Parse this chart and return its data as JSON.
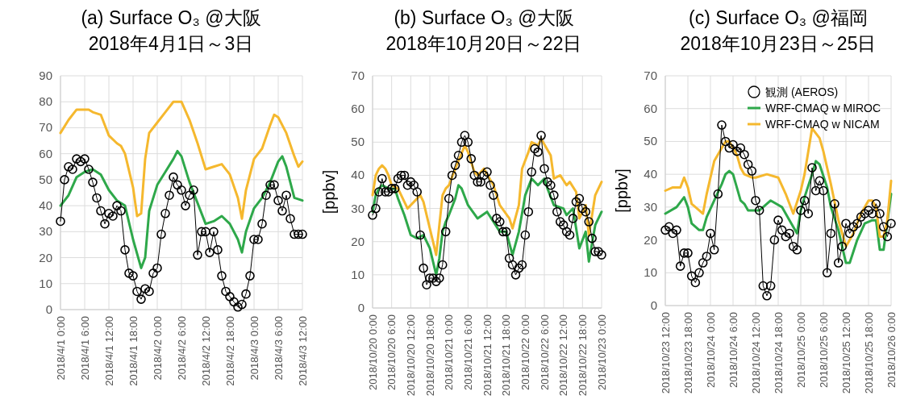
{
  "chart_data": [
    {
      "type": "line",
      "title": "(a) Surface O₃ @大阪",
      "subtitle": "2018年4月1日～3日",
      "grid": true,
      "xlim": [
        "2018-04-01T00:00",
        "2018-04-03T12:00"
      ],
      "ylim": [
        0,
        90
      ],
      "yticks": [
        0,
        10,
        20,
        30,
        40,
        50,
        60,
        70,
        80,
        90
      ],
      "xticks": [
        {
          "value": "2018-04-01T00:00",
          "label": "2018/4/1 0:00"
        },
        {
          "value": "2018-04-01T06:00",
          "label": "2018/4/1 6:00"
        },
        {
          "value": "2018-04-01T12:00",
          "label": "2018/4/1 12:00"
        },
        {
          "value": "2018-04-01T18:00",
          "label": "2018/4/1 18:00"
        },
        {
          "value": "2018-04-02T00:00",
          "label": "2018/4/2 0:00"
        },
        {
          "value": "2018-04-02T06:00",
          "label": "2018/4/2 6:00"
        },
        {
          "value": "2018-04-02T12:00",
          "label": "2018/4/2 12:00"
        },
        {
          "value": "2018-04-02T18:00",
          "label": "2018/4/2 18:00"
        },
        {
          "value": "2018-04-03T00:00",
          "label": "2018/4/3 0:00"
        },
        {
          "value": "2018-04-03T06:00",
          "label": "2018/4/3 6:00"
        },
        {
          "value": "2018-04-03T12:00",
          "label": "2018/4/3 12:00"
        }
      ],
      "x": [
        "2018-04-01T00:00",
        "2018-04-01T01:00",
        "2018-04-01T02:00",
        "2018-04-01T03:00",
        "2018-04-01T04:00",
        "2018-04-01T05:00",
        "2018-04-01T06:00",
        "2018-04-01T07:00",
        "2018-04-01T08:00",
        "2018-04-01T09:00",
        "2018-04-01T10:00",
        "2018-04-01T11:00",
        "2018-04-01T12:00",
        "2018-04-01T13:00",
        "2018-04-01T14:00",
        "2018-04-01T15:00",
        "2018-04-01T16:00",
        "2018-04-01T17:00",
        "2018-04-01T18:00",
        "2018-04-01T19:00",
        "2018-04-01T20:00",
        "2018-04-01T21:00",
        "2018-04-01T22:00",
        "2018-04-01T23:00",
        "2018-04-02T00:00",
        "2018-04-02T01:00",
        "2018-04-02T02:00",
        "2018-04-02T03:00",
        "2018-04-02T04:00",
        "2018-04-02T05:00",
        "2018-04-02T06:00",
        "2018-04-02T07:00",
        "2018-04-02T08:00",
        "2018-04-02T09:00",
        "2018-04-02T10:00",
        "2018-04-02T11:00",
        "2018-04-02T12:00",
        "2018-04-02T13:00",
        "2018-04-02T14:00",
        "2018-04-02T15:00",
        "2018-04-02T16:00",
        "2018-04-02T17:00",
        "2018-04-02T18:00",
        "2018-04-02T19:00",
        "2018-04-02T20:00",
        "2018-04-02T21:00",
        "2018-04-02T22:00",
        "2018-04-02T23:00",
        "2018-04-03T00:00",
        "2018-04-03T01:00",
        "2018-04-03T02:00",
        "2018-04-03T03:00",
        "2018-04-03T04:00",
        "2018-04-03T05:00",
        "2018-04-03T06:00",
        "2018-04-03T07:00",
        "2018-04-03T08:00",
        "2018-04-03T09:00",
        "2018-04-03T10:00",
        "2018-04-03T11:00",
        "2018-04-03T12:00"
      ],
      "series": [
        {
          "color": "#000000",
          "marker": "circle",
          "values": [
            34,
            50,
            55,
            54,
            58,
            57,
            58,
            54,
            49,
            43,
            38,
            33,
            37,
            36,
            40,
            38,
            23,
            14,
            13,
            7,
            4,
            8,
            7,
            14,
            16,
            29,
            37,
            44,
            51,
            48,
            46,
            40,
            44,
            46,
            21,
            30,
            30,
            22,
            30,
            23,
            13,
            7,
            5,
            3,
            1,
            2,
            6,
            13,
            27,
            27,
            33,
            44,
            48,
            48,
            42,
            38,
            44,
            35,
            29,
            29,
            29
          ]
        },
        {
          "color": "#2ea84a",
          "marker": "none",
          "x": [
            "2018-04-01T00:00",
            "2018-04-01T02:00",
            "2018-04-01T04:00",
            "2018-04-01T06:00",
            "2018-04-01T08:00",
            "2018-04-01T10:00",
            "2018-04-01T12:00",
            "2018-04-01T14:00",
            "2018-04-01T16:00",
            "2018-04-01T18:00",
            "2018-04-01T20:00",
            "2018-04-01T21:00",
            "2018-04-01T22:00",
            "2018-04-02T00:00",
            "2018-04-02T02:00",
            "2018-04-02T04:00",
            "2018-04-02T05:00",
            "2018-04-02T06:00",
            "2018-04-02T08:00",
            "2018-04-02T10:00",
            "2018-04-02T12:00",
            "2018-04-02T14:00",
            "2018-04-02T16:00",
            "2018-04-02T18:00",
            "2018-04-02T20:00",
            "2018-04-02T21:00",
            "2018-04-02T22:00",
            "2018-04-03T00:00",
            "2018-04-03T02:00",
            "2018-04-03T04:00",
            "2018-04-03T06:00",
            "2018-04-03T07:00",
            "2018-04-03T08:00",
            "2018-04-03T10:00",
            "2018-04-03T12:00"
          ],
          "values": [
            40,
            44,
            51,
            53,
            54,
            52,
            46,
            42,
            40,
            27,
            16,
            20,
            38,
            48,
            53,
            58,
            61,
            59,
            49,
            41,
            33,
            34,
            36,
            33,
            27,
            22,
            30,
            39,
            43,
            49,
            57,
            59,
            55,
            43,
            42
          ]
        },
        {
          "color": "#f5b82e",
          "marker": "none",
          "x": [
            "2018-04-01T00:00",
            "2018-04-01T02:00",
            "2018-04-01T04:00",
            "2018-04-01T05:00",
            "2018-04-01T07:00",
            "2018-04-01T08:00",
            "2018-04-01T10:00",
            "2018-04-01T11:00",
            "2018-04-01T12:00",
            "2018-04-01T14:00",
            "2018-04-01T15:00",
            "2018-04-01T16:00",
            "2018-04-01T18:00",
            "2018-04-01T19:00",
            "2018-04-01T20:00",
            "2018-04-01T21:00",
            "2018-04-01T22:00",
            "2018-04-02T00:00",
            "2018-04-02T02:00",
            "2018-04-02T04:00",
            "2018-04-02T05:00",
            "2018-04-02T06:00",
            "2018-04-02T08:00",
            "2018-04-02T10:00",
            "2018-04-02T12:00",
            "2018-04-02T14:00",
            "2018-04-02T16:00",
            "2018-04-02T18:00",
            "2018-04-02T20:00",
            "2018-04-02T21:00",
            "2018-04-02T22:00",
            "2018-04-03T00:00",
            "2018-04-03T02:00",
            "2018-04-03T04:00",
            "2018-04-03T05:00",
            "2018-04-03T06:00",
            "2018-04-03T08:00",
            "2018-04-03T10:00",
            "2018-04-03T11:00",
            "2018-04-03T12:00"
          ],
          "values": [
            68,
            73,
            77,
            77,
            77,
            76,
            75,
            71,
            67,
            64,
            63,
            60,
            47,
            36,
            37,
            58,
            68,
            72,
            76,
            80,
            80,
            80,
            73,
            64,
            54,
            55,
            56,
            52,
            43,
            35,
            46,
            58,
            62,
            71,
            75,
            74,
            68,
            59,
            55,
            57
          ]
        }
      ]
    },
    {
      "type": "line",
      "title": "(b) Surface O₃ @大阪",
      "subtitle": "2018年10月20日～22日",
      "ylabel": "[ppbv]",
      "grid": true,
      "xlim": [
        "2018-10-20T00:00",
        "2018-10-23T00:00"
      ],
      "ylim": [
        0,
        70
      ],
      "yticks": [
        0,
        10,
        20,
        30,
        40,
        50,
        60,
        70
      ],
      "xticks": [
        {
          "value": "2018-10-20T00:00",
          "label": "2018/10/20 0:00"
        },
        {
          "value": "2018-10-20T06:00",
          "label": "2018/10/20 6:00"
        },
        {
          "value": "2018-10-20T12:00",
          "label": "2018/10/20 12:00"
        },
        {
          "value": "2018-10-20T18:00",
          "label": "2018/10/20 18:00"
        },
        {
          "value": "2018-10-21T00:00",
          "label": "2018/10/21 0:00"
        },
        {
          "value": "2018-10-21T06:00",
          "label": "2018/10/21 6:00"
        },
        {
          "value": "2018-10-21T12:00",
          "label": "2018/10/21 12:00"
        },
        {
          "value": "2018-10-21T18:00",
          "label": "2018/10/21 18:00"
        },
        {
          "value": "2018-10-22T00:00",
          "label": "2018/10/22 0:00"
        },
        {
          "value": "2018-10-22T06:00",
          "label": "2018/10/22 6:00"
        },
        {
          "value": "2018-10-22T12:00",
          "label": "2018/10/22 12:00"
        },
        {
          "value": "2018-10-22T18:00",
          "label": "2018/10/22 18:00"
        },
        {
          "value": "2018-10-23T00:00",
          "label": "2018/10/23 0:00"
        }
      ],
      "x": [
        "2018-10-20T00:00",
        "2018-10-20T01:00",
        "2018-10-20T02:00",
        "2018-10-20T03:00",
        "2018-10-20T04:00",
        "2018-10-20T05:00",
        "2018-10-20T06:00",
        "2018-10-20T07:00",
        "2018-10-20T08:00",
        "2018-10-20T09:00",
        "2018-10-20T10:00",
        "2018-10-20T11:00",
        "2018-10-20T12:00",
        "2018-10-20T13:00",
        "2018-10-20T14:00",
        "2018-10-20T15:00",
        "2018-10-20T16:00",
        "2018-10-20T17:00",
        "2018-10-20T18:00",
        "2018-10-20T19:00",
        "2018-10-20T20:00",
        "2018-10-20T21:00",
        "2018-10-20T22:00",
        "2018-10-20T23:00",
        "2018-10-21T00:00",
        "2018-10-21T01:00",
        "2018-10-21T02:00",
        "2018-10-21T03:00",
        "2018-10-21T04:00",
        "2018-10-21T05:00",
        "2018-10-21T06:00",
        "2018-10-21T07:00",
        "2018-10-21T08:00",
        "2018-10-21T09:00",
        "2018-10-21T10:00",
        "2018-10-21T11:00",
        "2018-10-21T12:00",
        "2018-10-21T13:00",
        "2018-10-21T14:00",
        "2018-10-21T15:00",
        "2018-10-21T16:00",
        "2018-10-21T17:00",
        "2018-10-21T18:00",
        "2018-10-21T19:00",
        "2018-10-21T20:00",
        "2018-10-21T21:00",
        "2018-10-21T22:00",
        "2018-10-21T23:00",
        "2018-10-22T00:00",
        "2018-10-22T01:00",
        "2018-10-22T02:00",
        "2018-10-22T03:00",
        "2018-10-22T04:00",
        "2018-10-22T05:00",
        "2018-10-22T06:00",
        "2018-10-22T07:00",
        "2018-10-22T08:00",
        "2018-10-22T09:00",
        "2018-10-22T10:00",
        "2018-10-22T11:00",
        "2018-10-22T12:00",
        "2018-10-22T13:00",
        "2018-10-22T14:00",
        "2018-10-22T15:00",
        "2018-10-22T16:00",
        "2018-10-22T17:00",
        "2018-10-22T18:00",
        "2018-10-22T19:00",
        "2018-10-22T20:00",
        "2018-10-22T21:00",
        "2018-10-22T22:00",
        "2018-10-22T23:00",
        "2018-10-23T00:00"
      ],
      "series": [
        {
          "color": "#000000",
          "marker": "circle",
          "values": [
            28,
            30,
            35,
            39,
            35,
            35,
            36,
            36,
            39,
            40,
            40,
            37,
            38,
            37,
            35,
            22,
            12,
            7,
            9,
            9,
            8,
            9,
            13,
            23,
            33,
            40,
            43,
            46,
            50,
            52,
            50,
            45,
            40,
            38,
            38,
            40,
            41,
            37,
            34,
            27,
            26,
            23,
            23,
            15,
            13,
            10,
            12,
            13,
            22,
            29,
            41,
            48,
            47,
            52,
            42,
            38,
            37,
            34,
            29,
            26,
            25,
            23,
            22,
            27,
            32,
            33,
            30,
            29,
            26,
            21,
            17,
            17,
            16
          ]
        },
        {
          "color": "#2ea84a",
          "marker": "none",
          "x": [
            "2018-10-20T00:00",
            "2018-10-20T01:00",
            "2018-10-20T02:00",
            "2018-10-20T03:00",
            "2018-10-20T05:00",
            "2018-10-20T07:00",
            "2018-10-20T08:00",
            "2018-10-20T10:00",
            "2018-10-20T12:00",
            "2018-10-20T14:00",
            "2018-10-20T16:00",
            "2018-10-20T18:00",
            "2018-10-20T19:00",
            "2018-10-20T20:00",
            "2018-10-20T21:00",
            "2018-10-20T22:00",
            "2018-10-20T23:00",
            "2018-10-21T00:00",
            "2018-10-21T02:00",
            "2018-10-21T03:00",
            "2018-10-21T04:00",
            "2018-10-21T06:00",
            "2018-10-21T09:00",
            "2018-10-21T12:00",
            "2018-10-21T14:00",
            "2018-10-21T16:00",
            "2018-10-21T18:00",
            "2018-10-21T20:00",
            "2018-10-21T22:00",
            "2018-10-22T00:00",
            "2018-10-22T02:00",
            "2018-10-22T04:00",
            "2018-10-22T06:00",
            "2018-10-22T07:00",
            "2018-10-22T09:00",
            "2018-10-22T12:00",
            "2018-10-22T13:00",
            "2018-10-22T15:00",
            "2018-10-22T17:00",
            "2018-10-22T19:00",
            "2018-10-22T20:00",
            "2018-10-22T22:00",
            "2018-10-23T00:00"
          ],
          "values": [
            29,
            34,
            36,
            37,
            36,
            36,
            33,
            28,
            22,
            21,
            22,
            18,
            14,
            10,
            15,
            23,
            26,
            28,
            33,
            37,
            36,
            31,
            27,
            29,
            26,
            23,
            23,
            16,
            23,
            34,
            39,
            37,
            39,
            36,
            31,
            30,
            28,
            30,
            18,
            23,
            14,
            25,
            29
          ]
        },
        {
          "color": "#f5b82e",
          "marker": "none",
          "x": [
            "2018-10-20T00:00",
            "2018-10-20T01:00",
            "2018-10-20T02:00",
            "2018-10-20T03:00",
            "2018-10-20T04:00",
            "2018-10-20T05:00",
            "2018-10-20T06:00",
            "2018-10-20T08:00",
            "2018-10-20T10:00",
            "2018-10-20T11:00",
            "2018-10-20T13:00",
            "2018-10-20T15:00",
            "2018-10-20T16:00",
            "2018-10-20T17:00",
            "2018-10-20T18:00",
            "2018-10-20T19:00",
            "2018-10-20T20:00",
            "2018-10-20T21:00",
            "2018-10-20T22:00",
            "2018-10-20T23:00",
            "2018-10-21T00:00",
            "2018-10-21T02:00",
            "2018-10-21T05:00",
            "2018-10-21T06:00",
            "2018-10-21T08:00",
            "2018-10-21T09:00",
            "2018-10-21T11:00",
            "2018-10-21T14:00",
            "2018-10-21T16:00",
            "2018-10-21T19:00",
            "2018-10-21T20:00",
            "2018-10-21T22:00",
            "2018-10-21T23:00",
            "2018-10-22T01:00",
            "2018-10-22T02:00",
            "2018-10-22T04:00",
            "2018-10-22T05:00",
            "2018-10-22T08:00",
            "2018-10-22T09:00",
            "2018-10-22T11:00",
            "2018-10-22T13:00",
            "2018-10-22T14:00",
            "2018-10-22T16:00",
            "2018-10-22T17:00",
            "2018-10-22T19:00",
            "2018-10-22T20:00",
            "2018-10-22T22:00",
            "2018-10-23T00:00"
          ],
          "values": [
            34,
            40,
            42,
            43,
            42,
            40,
            37,
            36,
            32,
            30,
            32,
            34,
            32,
            28,
            24,
            20,
            16,
            25,
            34,
            36,
            37,
            42,
            49,
            47,
            41,
            40,
            42,
            37,
            31,
            27,
            24,
            31,
            42,
            47,
            50,
            49,
            51,
            46,
            39,
            40,
            37,
            38,
            35,
            27,
            31,
            22,
            34,
            38
          ]
        }
      ]
    },
    {
      "type": "line",
      "title": "(c) Surface O₃ @福岡",
      "subtitle": "2018年10月23日～25日",
      "ylabel": "[ppbv]",
      "grid": true,
      "legend": "top right",
      "xlim": [
        "2018-10-23T12:00",
        "2018-10-26T00:00"
      ],
      "ylim": [
        0,
        70
      ],
      "yticks": [
        0,
        10,
        20,
        30,
        40,
        50,
        60,
        70
      ],
      "xticks": [
        {
          "value": "2018-10-23T12:00",
          "label": "2018/10/23 12:00"
        },
        {
          "value": "2018-10-23T18:00",
          "label": "2018/10/23 18:00"
        },
        {
          "value": "2018-10-24T00:00",
          "label": "2018/10/24 0:00"
        },
        {
          "value": "2018-10-24T06:00",
          "label": "2018/10/24 6:00"
        },
        {
          "value": "2018-10-24T12:00",
          "label": "2018/10/24 12:00"
        },
        {
          "value": "2018-10-24T18:00",
          "label": "2018/10/24 18:00"
        },
        {
          "value": "2018-10-25T00:00",
          "label": "2018/10/25 0:00"
        },
        {
          "value": "2018-10-25T06:00",
          "label": "2018/10/25 6:00"
        },
        {
          "value": "2018-10-25T12:00",
          "label": "2018/10/25 12:00"
        },
        {
          "value": "2018-10-25T18:00",
          "label": "2018/10/25 18:00"
        },
        {
          "value": "2018-10-26T00:00",
          "label": "2018/10/26 0:00"
        }
      ],
      "x": [
        "2018-10-23T12:00",
        "2018-10-23T13:00",
        "2018-10-23T14:00",
        "2018-10-23T15:00",
        "2018-10-23T16:00",
        "2018-10-23T17:00",
        "2018-10-23T18:00",
        "2018-10-23T19:00",
        "2018-10-23T20:00",
        "2018-10-23T21:00",
        "2018-10-23T22:00",
        "2018-10-23T23:00",
        "2018-10-24T00:00",
        "2018-10-24T01:00",
        "2018-10-24T02:00",
        "2018-10-24T03:00",
        "2018-10-24T04:00",
        "2018-10-24T05:00",
        "2018-10-24T06:00",
        "2018-10-24T07:00",
        "2018-10-24T08:00",
        "2018-10-24T09:00",
        "2018-10-24T10:00",
        "2018-10-24T11:00",
        "2018-10-24T12:00",
        "2018-10-24T13:00",
        "2018-10-24T14:00",
        "2018-10-24T15:00",
        "2018-10-24T16:00",
        "2018-10-24T17:00",
        "2018-10-24T18:00",
        "2018-10-24T19:00",
        "2018-10-24T20:00",
        "2018-10-24T21:00",
        "2018-10-24T22:00",
        "2018-10-24T23:00",
        "2018-10-25T00:00",
        "2018-10-25T01:00",
        "2018-10-25T02:00",
        "2018-10-25T03:00",
        "2018-10-25T04:00",
        "2018-10-25T05:00",
        "2018-10-25T06:00",
        "2018-10-25T07:00",
        "2018-10-25T08:00",
        "2018-10-25T09:00",
        "2018-10-25T10:00",
        "2018-10-25T11:00",
        "2018-10-25T12:00",
        "2018-10-25T13:00",
        "2018-10-25T14:00",
        "2018-10-25T15:00",
        "2018-10-25T16:00",
        "2018-10-25T17:00",
        "2018-10-25T18:00",
        "2018-10-25T19:00",
        "2018-10-25T20:00",
        "2018-10-25T21:00",
        "2018-10-25T22:00",
        "2018-10-25T23:00",
        "2018-10-26T00:00"
      ],
      "series": [
        {
          "name": "観測 (AEROS)",
          "color": "#000000",
          "marker": "circle",
          "values": [
            23,
            24,
            22,
            23,
            12,
            16,
            16,
            9,
            7,
            10,
            13,
            15,
            22,
            17,
            34,
            55,
            50,
            48,
            49,
            47,
            48,
            46,
            43,
            41,
            32,
            29,
            6,
            3,
            6,
            20,
            26,
            23,
            21,
            22,
            18,
            17,
            29,
            32,
            28,
            42,
            35,
            38,
            35,
            10,
            22,
            31,
            13,
            18,
            25,
            22,
            24,
            25,
            27,
            28,
            29,
            28,
            31,
            28,
            24,
            21,
            25
          ]
        },
        {
          "name": "WRF-CMAQ w MIROC",
          "color": "#2ea84a",
          "marker": "none",
          "x": [
            "2018-10-23T12:00",
            "2018-10-23T15:00",
            "2018-10-23T17:00",
            "2018-10-23T18:00",
            "2018-10-23T19:00",
            "2018-10-23T21:00",
            "2018-10-23T22:00",
            "2018-10-23T23:00",
            "2018-10-24T01:00",
            "2018-10-24T03:00",
            "2018-10-24T04:00",
            "2018-10-24T05:00",
            "2018-10-24T06:00",
            "2018-10-24T07:00",
            "2018-10-24T08:00",
            "2018-10-24T09:00",
            "2018-10-24T10:00",
            "2018-10-24T11:00",
            "2018-10-24T13:00",
            "2018-10-24T16:00",
            "2018-10-24T19:00",
            "2018-10-24T21:00",
            "2018-10-24T23:00",
            "2018-10-25T00:00",
            "2018-10-25T01:00",
            "2018-10-25T03:00",
            "2018-10-25T04:00",
            "2018-10-25T05:00",
            "2018-10-25T07:00",
            "2018-10-25T08:00",
            "2018-10-25T10:00",
            "2018-10-25T12:00",
            "2018-10-25T13:00",
            "2018-10-25T15:00",
            "2018-10-25T17:00",
            "2018-10-25T19:00",
            "2018-10-25T20:00",
            "2018-10-25T21:00",
            "2018-10-25T22:00",
            "2018-10-26T00:00"
          ],
          "values": [
            28,
            30,
            33,
            30,
            25,
            23,
            23,
            27,
            32,
            37,
            40,
            41,
            40,
            36,
            32,
            31,
            29,
            29,
            29,
            32,
            30,
            26,
            22,
            29,
            33,
            40,
            44,
            43,
            36,
            30,
            23,
            13,
            13,
            20,
            25,
            26,
            26,
            17,
            17,
            34
          ]
        },
        {
          "name": "WRF-CMAQ w NICAM",
          "color": "#f5b82e",
          "marker": "none",
          "x": [
            "2018-10-23T12:00",
            "2018-10-23T14:00",
            "2018-10-23T16:00",
            "2018-10-23T17:00",
            "2018-10-23T18:00",
            "2018-10-23T19:00",
            "2018-10-23T21:00",
            "2018-10-23T22:00",
            "2018-10-23T23:00",
            "2018-10-24T00:00",
            "2018-10-24T01:00",
            "2018-10-24T03:00",
            "2018-10-24T04:00",
            "2018-10-24T05:00",
            "2018-10-24T06:00",
            "2018-10-24T07:00",
            "2018-10-24T08:00",
            "2018-10-24T09:00",
            "2018-10-24T11:00",
            "2018-10-24T12:00",
            "2018-10-24T15:00",
            "2018-10-24T18:00",
            "2018-10-24T20:00",
            "2018-10-24T22:00",
            "2018-10-25T00:00",
            "2018-10-25T01:00",
            "2018-10-25T03:00",
            "2018-10-25T05:00",
            "2018-10-25T06:00",
            "2018-10-25T08:00",
            "2018-10-25T10:00",
            "2018-10-25T12:00",
            "2018-10-25T14:00",
            "2018-10-25T16:00",
            "2018-10-25T18:00",
            "2018-10-25T19:00",
            "2018-10-25T20:00",
            "2018-10-25T21:00",
            "2018-10-25T22:00",
            "2018-10-25T23:00",
            "2018-10-26T00:00"
          ],
          "values": [
            35,
            36,
            36,
            39,
            36,
            31,
            29,
            28,
            34,
            39,
            44,
            48,
            50,
            50,
            48,
            46,
            42,
            40,
            39,
            39,
            40,
            39,
            34,
            28,
            35,
            40,
            54,
            51,
            47,
            37,
            26,
            18,
            22,
            28,
            32,
            32,
            30,
            21,
            21,
            26,
            38
          ]
        }
      ]
    }
  ]
}
